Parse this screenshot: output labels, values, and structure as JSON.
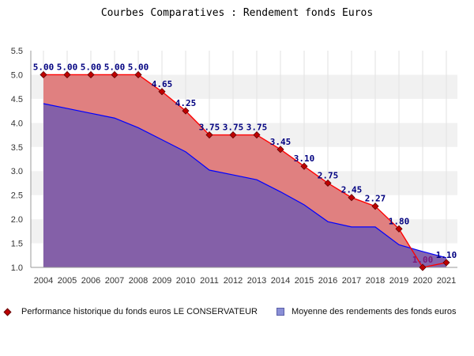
{
  "chart_data": {
    "type": "area",
    "title": "Courbes Comparatives : Rendement fonds Euros",
    "xlabel": "",
    "ylabel": "",
    "categories": [
      "2004",
      "2005",
      "2006",
      "2007",
      "2008",
      "2009",
      "2010",
      "2011",
      "2012",
      "2013",
      "2014",
      "2015",
      "2016",
      "2017",
      "2018",
      "2019",
      "2020",
      "2021"
    ],
    "ylim": [
      1.0,
      5.5
    ],
    "yticks": [
      "1.0",
      "1.5",
      "2.0",
      "2.5",
      "3.0",
      "3.5",
      "4.0",
      "4.5",
      "5.0",
      "5.5"
    ],
    "grid": "horizontal bands",
    "legend_position": "bottom",
    "series": [
      {
        "name": "Performance historique du fonds euros LE CONSERVATEUR",
        "values": [
          5.0,
          5.0,
          5.0,
          5.0,
          5.0,
          4.65,
          4.25,
          3.75,
          3.75,
          3.75,
          3.45,
          3.1,
          2.75,
          2.45,
          2.27,
          1.8,
          1.0,
          1.1
        ],
        "labels": [
          "5.00",
          "5.00",
          "5.00",
          "5.00",
          "5.00",
          "4.65",
          "4.25",
          "3.75",
          "3.75",
          "3.75",
          "3.45",
          "3.10",
          "2.75",
          "2.45",
          "2.27",
          "1.80",
          "1.00",
          "1.10"
        ],
        "line_color": "#ff0000",
        "fill_color": "#e08080",
        "marker_color": "#c00000"
      },
      {
        "name": "Moyenne des rendements des fonds euros",
        "values": [
          4.4,
          4.3,
          4.2,
          4.1,
          3.9,
          3.65,
          3.4,
          3.02,
          2.92,
          2.82,
          2.57,
          2.3,
          1.95,
          1.84,
          1.84,
          1.47,
          1.33,
          1.2
        ],
        "line_color": "#0000ff",
        "fill_color": "#7e5eaa"
      }
    ]
  }
}
